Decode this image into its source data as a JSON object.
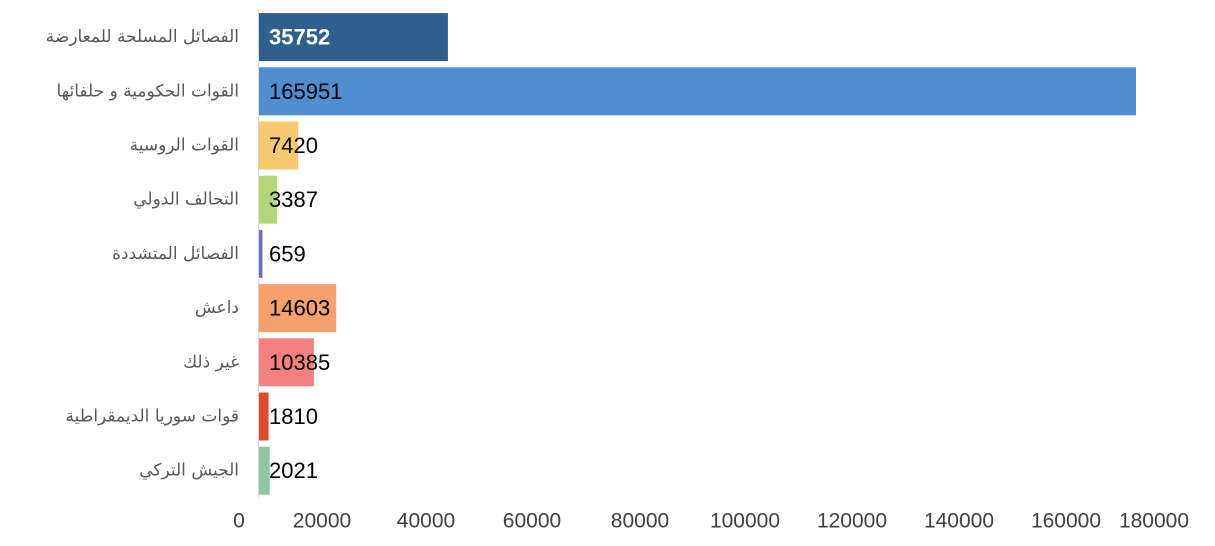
{
  "chart_data": {
    "type": "bar",
    "orientation": "horizontal",
    "title": "",
    "xlabel": "",
    "ylabel": "",
    "xlim": [
      0,
      180000
    ],
    "grid": false,
    "legend": "none",
    "ticks": [
      "0",
      "20000",
      "40000",
      "60000",
      "80000",
      "100000",
      "120000",
      "140000",
      "160000",
      "180000"
    ],
    "tick_values": [
      0,
      20000,
      40000,
      60000,
      80000,
      100000,
      120000,
      140000,
      160000,
      180000
    ],
    "categories": [
      "الفصائل المسلحة للمعارضة",
      "القوات الحكومية و حلفائها",
      "القوات الروسية",
      "التحالف الدولي",
      "الفصائل المتشددة",
      "داعش",
      "غير ذلك",
      "قوات سوريا الديمقراطية",
      "الجيش التركي"
    ],
    "values": [
      35752,
      165951,
      7420,
      3387,
      659,
      14603,
      10385,
      1810,
      2021
    ],
    "data_labels": [
      "35752",
      "165951",
      "7420",
      "3387",
      "659",
      "14603",
      "10385",
      "1810",
      "2021"
    ],
    "colors": [
      "#2F5F8F",
      "#4F8FCF",
      "#F9C970",
      "#B4D57A",
      "#6B6FC9",
      "#F6A06B",
      "#F48080",
      "#E0492A",
      "#8DC7A3"
    ],
    "inverse_labels": [
      true,
      false,
      false,
      false,
      false,
      false,
      false,
      false,
      false
    ]
  }
}
